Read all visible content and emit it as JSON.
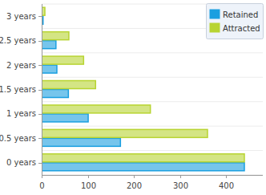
{
  "chart_data": {
    "type": "bar",
    "orientation": "horizontal",
    "legend": "top-right",
    "categories": [
      "0 years",
      "0.5 years",
      "1 years",
      "1.5 years",
      "2 years",
      "2.5 years",
      "3 years"
    ],
    "series": [
      {
        "name": "Retained",
        "color": "#1a9fe0",
        "values": [
          440,
          171,
          101,
          58,
          33,
          31,
          3
        ]
      },
      {
        "name": "Attracted",
        "color": "#b8d432",
        "values": [
          440,
          360,
          236,
          117,
          91,
          59,
          7
        ]
      }
    ],
    "xlim": [
      0,
      480
    ],
    "xticks": [
      0,
      100,
      200,
      300,
      400
    ]
  }
}
